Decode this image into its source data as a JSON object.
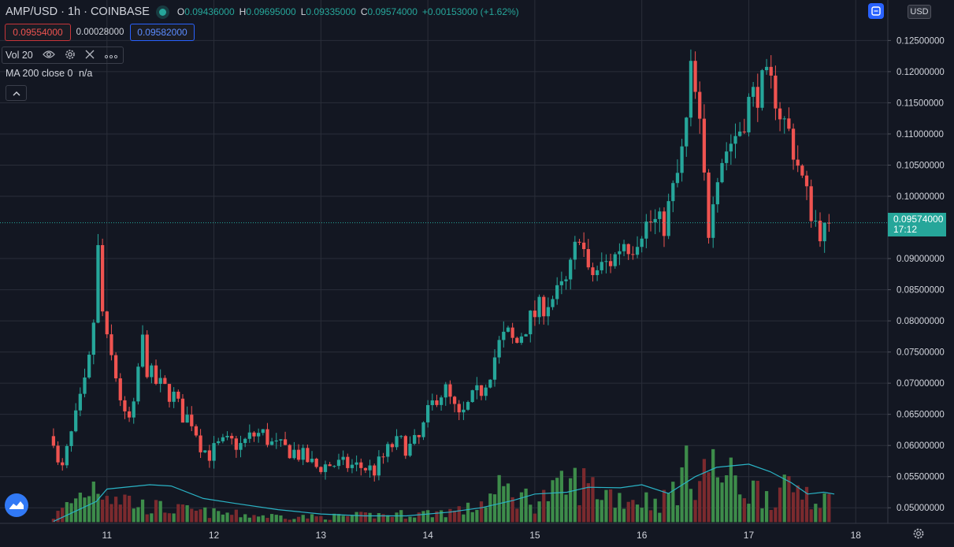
{
  "legend": {
    "symbol": "AMP/USD · 1h · COINBASE",
    "o_label": "O",
    "o_value": "0.09436000",
    "h_label": "H",
    "h_value": "0.09695000",
    "l_label": "L",
    "l_value": "0.09335000",
    "c_label": "C",
    "c_value": "0.09574000",
    "change": "+0.00153000 (+1.62%)"
  },
  "trade": {
    "sell_price": "0.09554000",
    "spread": "0.00028000",
    "buy_price": "0.09582000"
  },
  "indicators": {
    "volume_label": "Vol 20",
    "ma_label": "MA 200 close 0",
    "ma_value": "n/a"
  },
  "price_axis": {
    "currency": "USD",
    "current_price": "0.09574000",
    "countdown": "17:12"
  },
  "colors": {
    "background": "#131722",
    "grid": "#2a2e39",
    "up": "#26a69a",
    "down": "#ef5350",
    "volume_up": "#3d8c4a",
    "volume_down": "#7b2a2e",
    "volume_ma": "#2ab3c5",
    "accent": "#2962ff"
  },
  "icons": {
    "eye": "eye-icon",
    "settings": "gear-icon",
    "remove": "close-icon",
    "more": "more-icon",
    "collapse": "chevron-up-icon",
    "sync": "sync-icon",
    "logo": "tradingview-logo-icon",
    "chart_settings": "gear-icon"
  },
  "chart_data": {
    "type": "candlestick",
    "interval": "1h",
    "x_tick_labels": [
      "11",
      "12",
      "13",
      "14",
      "15",
      "16",
      "17",
      "18"
    ],
    "y_tick_labels": [
      "0.12500000",
      "0.12000000",
      "0.11500000",
      "0.11000000",
      "0.10500000",
      "0.10000000",
      "0.09000000",
      "0.08500000",
      "0.08000000",
      "0.07500000",
      "0.07000000",
      "0.06500000",
      "0.06000000",
      "0.05500000",
      "0.05000000"
    ],
    "ylim": [
      0.0475,
      0.1315
    ],
    "xlim_days": [
      10.0,
      18.3
    ],
    "first_candle_day": 10.5,
    "last_close": 0.09574,
    "price_path": [
      [
        10.5,
        0.0615
      ],
      [
        10.56,
        0.0545
      ],
      [
        10.64,
        0.06
      ],
      [
        10.72,
        0.065
      ],
      [
        10.8,
        0.07
      ],
      [
        10.86,
        0.076
      ],
      [
        10.92,
        0.092
      ],
      [
        10.97,
        0.078
      ],
      [
        11.04,
        0.074
      ],
      [
        11.1,
        0.07
      ],
      [
        11.18,
        0.063
      ],
      [
        11.26,
        0.066
      ],
      [
        11.32,
        0.078
      ],
      [
        11.38,
        0.072
      ],
      [
        11.46,
        0.07
      ],
      [
        11.54,
        0.069
      ],
      [
        11.62,
        0.068
      ],
      [
        11.7,
        0.065
      ],
      [
        11.8,
        0.064
      ],
      [
        11.88,
        0.06
      ],
      [
        11.95,
        0.0585
      ],
      [
        12.05,
        0.06
      ],
      [
        12.15,
        0.0605
      ],
      [
        12.25,
        0.06
      ],
      [
        12.35,
        0.0615
      ],
      [
        12.45,
        0.062
      ],
      [
        12.55,
        0.06
      ],
      [
        12.65,
        0.0595
      ],
      [
        12.75,
        0.059
      ],
      [
        12.85,
        0.058
      ],
      [
        12.95,
        0.0565
      ],
      [
        13.1,
        0.057
      ],
      [
        13.25,
        0.0568
      ],
      [
        13.4,
        0.0565
      ],
      [
        13.5,
        0.056
      ],
      [
        13.58,
        0.058
      ],
      [
        13.66,
        0.06
      ],
      [
        13.74,
        0.0605
      ],
      [
        13.82,
        0.0595
      ],
      [
        13.92,
        0.061
      ],
      [
        14.0,
        0.065
      ],
      [
        14.08,
        0.068
      ],
      [
        14.16,
        0.069
      ],
      [
        14.24,
        0.066
      ],
      [
        14.3,
        0.064
      ],
      [
        14.4,
        0.067
      ],
      [
        14.5,
        0.069
      ],
      [
        14.58,
        0.072
      ],
      [
        14.66,
        0.076
      ],
      [
        14.74,
        0.078
      ],
      [
        14.82,
        0.076
      ],
      [
        14.9,
        0.079
      ],
      [
        15.0,
        0.081
      ],
      [
        15.1,
        0.083
      ],
      [
        15.2,
        0.084
      ],
      [
        15.3,
        0.086
      ],
      [
        15.36,
        0.09
      ],
      [
        15.42,
        0.095
      ],
      [
        15.5,
        0.087
      ],
      [
        15.58,
        0.088
      ],
      [
        15.66,
        0.089
      ],
      [
        15.74,
        0.09
      ],
      [
        15.82,
        0.093
      ],
      [
        15.9,
        0.092
      ],
      [
        16.0,
        0.095
      ],
      [
        16.1,
        0.096
      ],
      [
        16.2,
        0.095
      ],
      [
        16.28,
        0.1
      ],
      [
        16.36,
        0.105
      ],
      [
        16.42,
        0.112
      ],
      [
        16.46,
        0.12
      ],
      [
        16.5,
        0.116
      ],
      [
        16.56,
        0.108
      ],
      [
        16.62,
        0.094
      ],
      [
        16.68,
        0.103
      ],
      [
        16.74,
        0.106
      ],
      [
        16.84,
        0.109
      ],
      [
        16.92,
        0.111
      ],
      [
        17.0,
        0.115
      ],
      [
        17.08,
        0.117
      ],
      [
        17.16,
        0.118
      ],
      [
        17.24,
        0.117
      ],
      [
        17.3,
        0.113
      ],
      [
        17.38,
        0.11
      ],
      [
        17.46,
        0.105
      ],
      [
        17.54,
        0.1
      ],
      [
        17.62,
        0.096
      ],
      [
        17.7,
        0.094
      ],
      [
        17.78,
        0.0957
      ]
    ],
    "volume_ma_path": [
      [
        10.5,
        0.0478
      ],
      [
        10.9,
        0.051
      ],
      [
        11.0,
        0.053
      ],
      [
        11.4,
        0.0537
      ],
      [
        11.6,
        0.0535
      ],
      [
        11.9,
        0.0515
      ],
      [
        12.2,
        0.0507
      ],
      [
        12.6,
        0.0497
      ],
      [
        13.0,
        0.049
      ],
      [
        13.4,
        0.0487
      ],
      [
        13.8,
        0.0487
      ],
      [
        14.2,
        0.0493
      ],
      [
        14.5,
        0.05
      ],
      [
        14.8,
        0.0512
      ],
      [
        15.0,
        0.0522
      ],
      [
        15.3,
        0.0525
      ],
      [
        15.5,
        0.0533
      ],
      [
        15.8,
        0.0532
      ],
      [
        16.0,
        0.0537
      ],
      [
        16.25,
        0.0523
      ],
      [
        16.5,
        0.055
      ],
      [
        16.7,
        0.0565
      ],
      [
        17.0,
        0.057
      ],
      [
        17.2,
        0.0558
      ],
      [
        17.4,
        0.054
      ],
      [
        17.55,
        0.0522
      ],
      [
        17.7,
        0.0525
      ],
      [
        17.8,
        0.0522
      ]
    ],
    "volume_level_path": [
      [
        10.5,
        0.049
      ],
      [
        10.9,
        0.058
      ],
      [
        11.0,
        0.056
      ],
      [
        11.3,
        0.052
      ],
      [
        11.6,
        0.051
      ],
      [
        12.0,
        0.05
      ],
      [
        12.5,
        0.0493
      ],
      [
        13.0,
        0.049
      ],
      [
        13.5,
        0.0495
      ],
      [
        14.0,
        0.05
      ],
      [
        14.4,
        0.051
      ],
      [
        14.7,
        0.056
      ],
      [
        15.0,
        0.053
      ],
      [
        15.4,
        0.058
      ],
      [
        15.8,
        0.054
      ],
      [
        16.2,
        0.053
      ],
      [
        16.4,
        0.06
      ],
      [
        16.6,
        0.062
      ],
      [
        17.0,
        0.056
      ],
      [
        17.3,
        0.055
      ],
      [
        17.5,
        0.057
      ],
      [
        17.8,
        0.052
      ]
    ],
    "volume_base": 0.0477
  }
}
